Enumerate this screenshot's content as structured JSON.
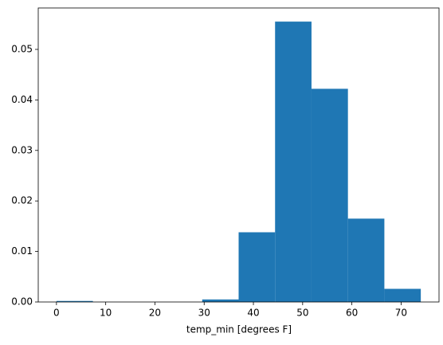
{
  "chart_data": {
    "type": "histogram",
    "x_label": "temp_min [degrees F]",
    "bins": [
      0,
      7.4,
      14.8,
      22.2,
      29.6,
      37,
      44.4,
      51.8,
      59.2,
      66.6,
      74
    ],
    "values": [
      0.0002,
      0,
      0,
      0,
      0.0005,
      0.0138,
      0.0555,
      0.0422,
      0.0165,
      0.0026
    ],
    "color": "#1f77b4",
    "xlim": [
      -3.7,
      77.7
    ],
    "xticks": [
      0,
      10,
      20,
      30,
      40,
      50,
      60,
      70
    ],
    "ylim": [
      0,
      0.0582
    ],
    "yticks": [
      {
        "value": 0,
        "label": "0.00"
      },
      {
        "value": 0.01,
        "label": "0.01"
      },
      {
        "value": 0.02,
        "label": "0.02"
      },
      {
        "value": 0.03,
        "label": "0.03"
      },
      {
        "value": 0.04,
        "label": "0.04"
      },
      {
        "value": 0.05,
        "label": "0.05"
      }
    ]
  }
}
